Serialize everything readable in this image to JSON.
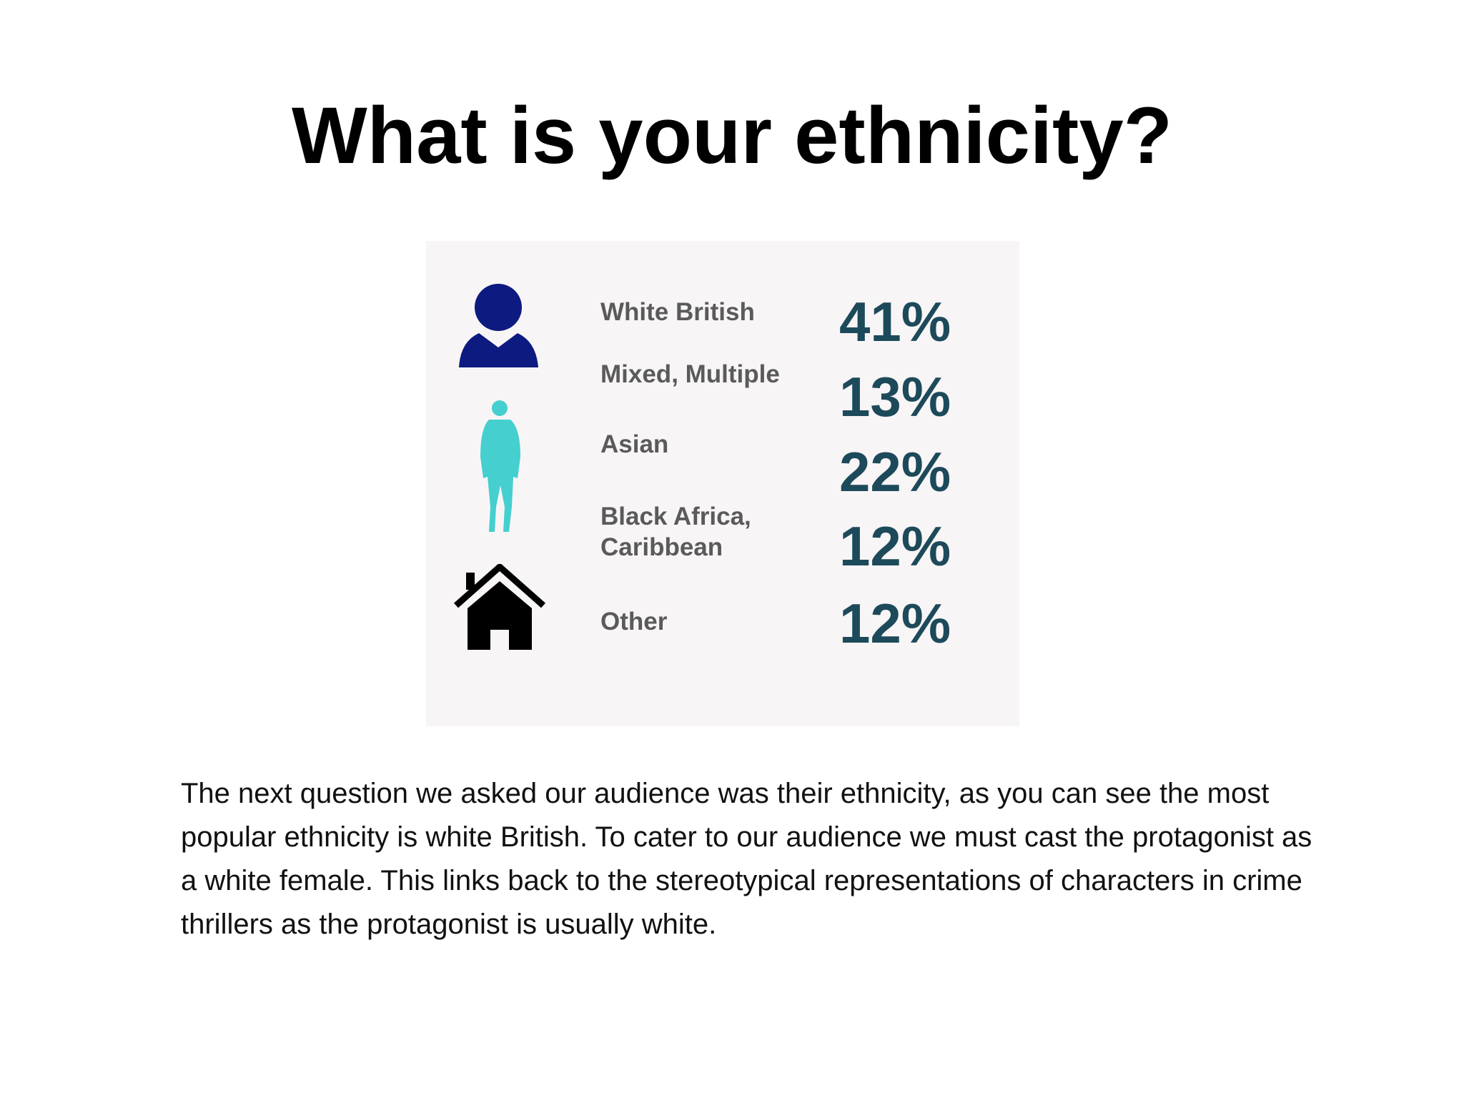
{
  "slide": {
    "title": "What is your ethnicity?",
    "infographic": {
      "rows": [
        {
          "label": "White British",
          "value": "41%"
        },
        {
          "label": "Mixed, Multiple",
          "value": "13%"
        },
        {
          "label": "Asian",
          "value": "22%"
        },
        {
          "label": "Black Africa, Caribbean",
          "value": "12%"
        },
        {
          "label": "Other",
          "value": "12%"
        }
      ]
    },
    "body": "The next question we asked our audience was their ethnicity, as you can see the most popular ethnicity is white British. To cater to our audience we must cast the protagonist as a white female. This links back to the stereotypical representations of characters in crime thrillers as the protagonist is usually white."
  }
}
